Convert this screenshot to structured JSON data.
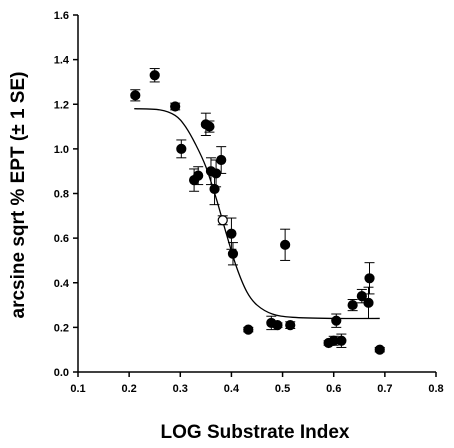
{
  "chart_data": {
    "type": "scatter",
    "xlabel": "LOG Substrate Index",
    "ylabel": "arcsine sqrt % EPT (± 1 SE)",
    "xlim": [
      0.1,
      0.8
    ],
    "ylim": [
      0.0,
      1.6
    ],
    "x_ticks": [
      "0.1",
      "0.2",
      "0.3",
      "0.4",
      "0.5",
      "0.6",
      "0.7",
      "0.8"
    ],
    "y_ticks": [
      "0.0",
      "0.2",
      "0.4",
      "0.6",
      "0.8",
      "1.0",
      "1.2",
      "1.4",
      "1.6"
    ],
    "grid": false,
    "legend": "none",
    "marker_color": "#000000",
    "points": [
      {
        "x": 0.212,
        "y": 1.24,
        "se": 0.025
      },
      {
        "x": 0.25,
        "y": 1.33,
        "se": 0.03
      },
      {
        "x": 0.29,
        "y": 1.19,
        "se": 0.015
      },
      {
        "x": 0.302,
        "y": 1.0,
        "se": 0.04
      },
      {
        "x": 0.327,
        "y": 0.86,
        "se": 0.05
      },
      {
        "x": 0.335,
        "y": 0.88,
        "se": 0.04
      },
      {
        "x": 0.35,
        "y": 1.11,
        "se": 0.05
      },
      {
        "x": 0.357,
        "y": 1.1,
        "se": 0.025
      },
      {
        "x": 0.36,
        "y": 0.9,
        "se": 0.06
      },
      {
        "x": 0.367,
        "y": 0.82,
        "se": 0.07
      },
      {
        "x": 0.37,
        "y": 0.89,
        "se": 0.06
      },
      {
        "x": 0.38,
        "y": 0.95,
        "se": 0.06
      },
      {
        "x": 0.383,
        "y": 0.68,
        "se": 0.02,
        "open": true
      },
      {
        "x": 0.4,
        "y": 0.62,
        "se": 0.07
      },
      {
        "x": 0.403,
        "y": 0.53,
        "se": 0.05
      },
      {
        "x": 0.433,
        "y": 0.19,
        "se": 0.01
      },
      {
        "x": 0.478,
        "y": 0.22,
        "se": 0.03
      },
      {
        "x": 0.49,
        "y": 0.21,
        "se": 0.01
      },
      {
        "x": 0.505,
        "y": 0.57,
        "se": 0.07
      },
      {
        "x": 0.515,
        "y": 0.21,
        "se": 0.015
      },
      {
        "x": 0.59,
        "y": 0.13,
        "se": 0.01
      },
      {
        "x": 0.6,
        "y": 0.14,
        "se": 0.02
      },
      {
        "x": 0.605,
        "y": 0.23,
        "se": 0.03
      },
      {
        "x": 0.615,
        "y": 0.14,
        "se": 0.03
      },
      {
        "x": 0.637,
        "y": 0.3,
        "se": 0.025
      },
      {
        "x": 0.655,
        "y": 0.34,
        "se": 0.03
      },
      {
        "x": 0.668,
        "y": 0.31,
        "se": 0.07
      },
      {
        "x": 0.67,
        "y": 0.42,
        "se": 0.07
      },
      {
        "x": 0.69,
        "y": 0.1,
        "se": 0.01
      }
    ],
    "fit_curve": [
      {
        "x": 0.21,
        "y": 1.18
      },
      {
        "x": 0.26,
        "y": 1.175
      },
      {
        "x": 0.29,
        "y": 1.15
      },
      {
        "x": 0.31,
        "y": 1.1
      },
      {
        "x": 0.33,
        "y": 1.02
      },
      {
        "x": 0.35,
        "y": 0.92
      },
      {
        "x": 0.37,
        "y": 0.78
      },
      {
        "x": 0.39,
        "y": 0.62
      },
      {
        "x": 0.41,
        "y": 0.47
      },
      {
        "x": 0.43,
        "y": 0.36
      },
      {
        "x": 0.45,
        "y": 0.3
      },
      {
        "x": 0.48,
        "y": 0.26
      },
      {
        "x": 0.52,
        "y": 0.245
      },
      {
        "x": 0.6,
        "y": 0.24
      },
      {
        "x": 0.69,
        "y": 0.24
      }
    ]
  }
}
